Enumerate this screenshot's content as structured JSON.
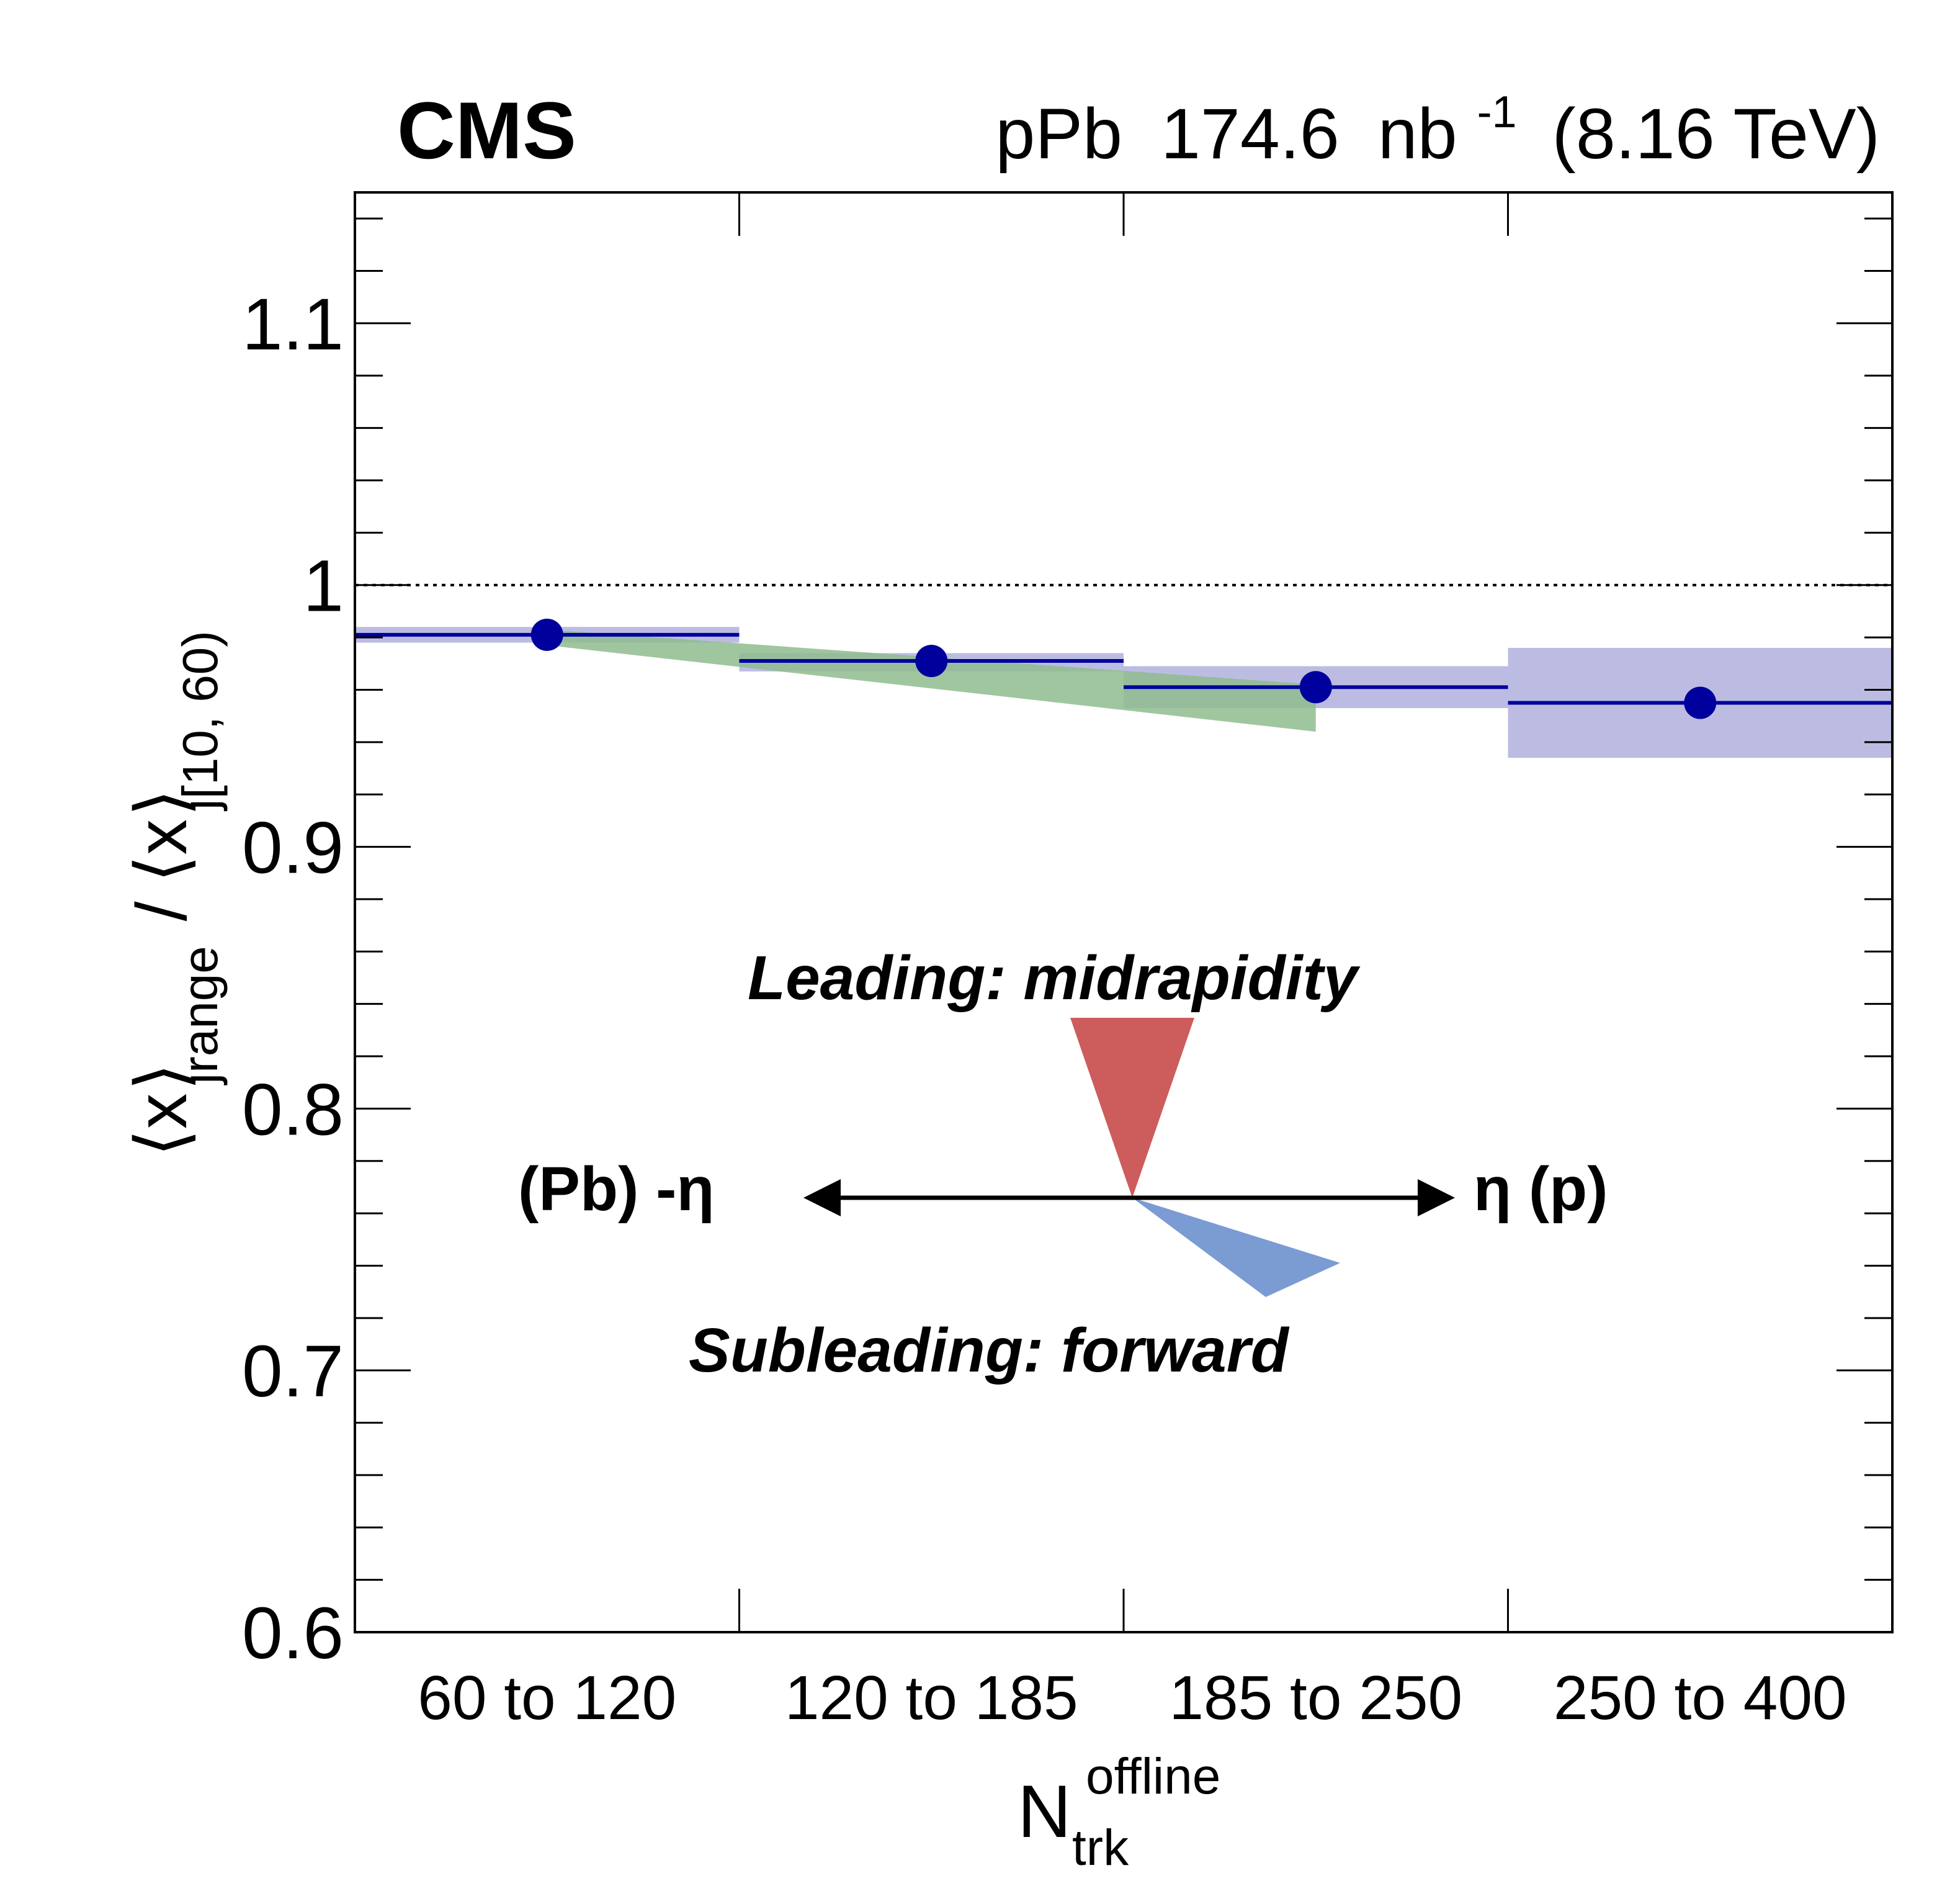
{
  "chart_data": {
    "type": "scatter",
    "experiment": "CMS",
    "lumi": {
      "system": "pPb",
      "value": "174.6",
      "unit": "nb",
      "exponent": "-1",
      "energy": "(8.16 TeV)"
    },
    "ylabel": {
      "numer_base": "⟨x",
      "numer_sub1": "j",
      "numer_sub2": "range",
      "slash": "/",
      "denom_base": "⟨x",
      "denom_sub1": "j",
      "denom_sub2": "[10, 60)",
      "close": "⟩"
    },
    "xlabel": {
      "base": "N",
      "sub": "trk",
      "sup": "offline"
    },
    "ylim": [
      0.6,
      1.15
    ],
    "yticks": [
      0.6,
      0.7,
      0.8,
      0.9,
      1,
      1.1
    ],
    "ytick_labels": [
      "0.6",
      "0.7",
      "0.8",
      "0.9",
      "1",
      "1.1"
    ],
    "categories": [
      "60 to 120",
      "120 to 185",
      "185 to 250",
      "250 to 400"
    ],
    "reference_line": 1.0,
    "series": [
      {
        "color": "#00009c",
        "values": [
          0.981,
          0.971,
          0.961,
          0.955
        ],
        "syst_low": [
          0.978,
          0.967,
          0.953,
          0.934
        ],
        "syst_high": [
          0.984,
          0.974,
          0.969,
          0.976
        ],
        "syst_color": "#b8b8e2"
      }
    ],
    "model_band": {
      "color": "#8fbc8f",
      "x_from": 0.5,
      "x_to": 2.5,
      "upper": [
        0.983,
        0.962
      ],
      "lower": [
        0.977,
        0.944
      ]
    },
    "diagram": {
      "leading_label": "Leading: midrapidity",
      "subleading_label": "Subleading: forward",
      "left_label": "(Pb) -η",
      "right_label": "η (p)",
      "leading_color": "#cd5c5c",
      "subleading_color": "#7b9bd3"
    }
  }
}
